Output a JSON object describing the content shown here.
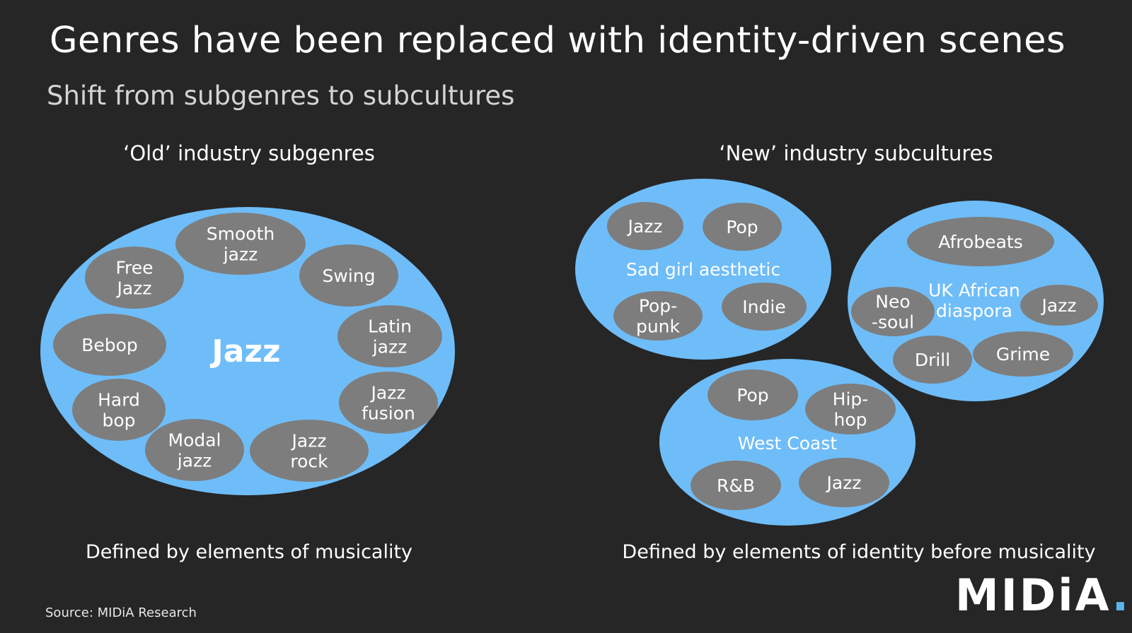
{
  "title": "Genres have been replaced with identity-driven scenes",
  "subtitle": "Shift from subgenres to subcultures",
  "colors": {
    "background": "#262626",
    "cluster": "#6ebcf8",
    "node": "#7d7d7d",
    "text": "#ffffff"
  },
  "old": {
    "heading": "‘Old’ industry subgenres",
    "footer": "Defined by elements of musicality",
    "center_label": "Jazz",
    "nodes": [
      [
        "Smooth",
        "jazz"
      ],
      [
        "Free",
        "Jazz"
      ],
      [
        "Swing"
      ],
      [
        "Latin",
        "jazz"
      ],
      [
        "Bebop"
      ],
      [
        "Jazz",
        "fusion"
      ],
      [
        "Hard",
        "bop"
      ],
      [
        "Modal",
        "jazz"
      ],
      [
        "Jazz",
        "rock"
      ]
    ]
  },
  "new": {
    "heading": "‘New’ industry subcultures",
    "footer": "Defined by elements of identity before musicality",
    "clusters": [
      {
        "label": [
          "Sad girl aesthetic"
        ],
        "nodes": [
          [
            "Jazz"
          ],
          [
            "Pop"
          ],
          [
            "Pop-",
            "punk"
          ],
          [
            "Indie"
          ]
        ]
      },
      {
        "label": [
          "UK African",
          "diaspora"
        ],
        "nodes": [
          [
            "Afrobeats"
          ],
          [
            "Neo",
            "-soul"
          ],
          [
            "Jazz"
          ],
          [
            "Drill"
          ],
          [
            "Grime"
          ]
        ]
      },
      {
        "label": [
          "West Coast"
        ],
        "nodes": [
          [
            "Pop"
          ],
          [
            "Hip-",
            "hop"
          ],
          [
            "R&B"
          ],
          [
            "Jazz"
          ]
        ]
      }
    ]
  },
  "source": "Source: MIDiA Research",
  "logo": {
    "text": "MIDiA",
    "dot": "."
  }
}
